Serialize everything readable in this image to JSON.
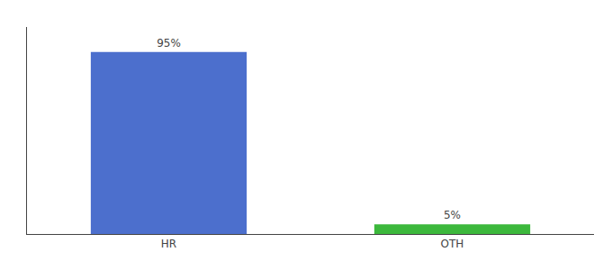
{
  "chart_data": {
    "type": "bar",
    "categories": [
      "HR",
      "OTH"
    ],
    "values": [
      95,
      5
    ],
    "value_labels": [
      "95%",
      "5%"
    ],
    "colors": [
      "#4c6fcd",
      "#3cb83c"
    ],
    "ylim": [
      0,
      108
    ],
    "data_labels": true,
    "tick_labels": "x",
    "grid": false
  }
}
